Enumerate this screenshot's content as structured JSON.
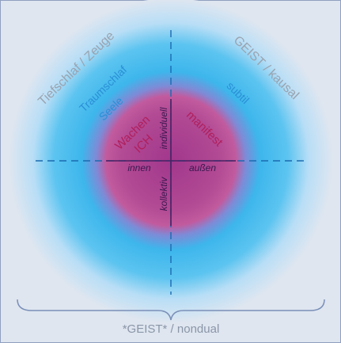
{
  "labels": {
    "outer_left": "Tiefschlaf / Zeuge",
    "outer_right": "GEIST / kausal",
    "middle_left_1": "Traumschlaf",
    "middle_left_2": "Seele",
    "middle_right": "subtil",
    "inner_left_1": "Wachen",
    "inner_left_2": "ICH",
    "inner_right": "manifest",
    "axis_top": "individuell",
    "axis_bottom": "kollektiv",
    "axis_left": "innen",
    "axis_right": "außen",
    "bottom": "*GEIST* / nondual"
  }
}
